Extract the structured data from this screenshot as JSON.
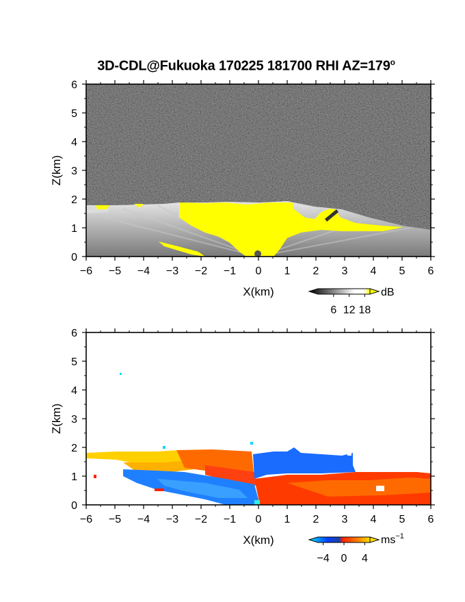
{
  "title": {
    "main": "3D-CDL@Fukuoka 170225 181700 RHI AZ=179",
    "degree_sup": "o"
  },
  "chart_data": [
    {
      "type": "heatmap",
      "panel": "top",
      "quantity": "backscatter intensity",
      "xlabel": "X(km)",
      "ylabel": "Z(km)",
      "xlim": [
        -6,
        6
      ],
      "ylim": [
        0,
        6
      ],
      "xticks": [
        "-6",
        "-5",
        "-4",
        "-3",
        "-2",
        "-1",
        "0",
        "1",
        "2",
        "3",
        "4",
        "5",
        "6"
      ],
      "yticks": [
        "0",
        "1",
        "2",
        "3",
        "4",
        "5",
        "6"
      ],
      "colorbar": {
        "unit": "dB",
        "ticks": [
          "6",
          "12",
          "18"
        ],
        "range": [
          0,
          20
        ],
        "colors": [
          "#000000",
          "#ffffff",
          "#ffff00"
        ]
      },
      "cloud_top_km": [
        {
          "x": -6.0,
          "z": 1.75
        },
        {
          "x": -5.0,
          "z": 1.75
        },
        {
          "x": -4.2,
          "z": 1.78
        },
        {
          "x": -3.0,
          "z": 1.8
        },
        {
          "x": -2.5,
          "z": 1.85
        },
        {
          "x": -1.5,
          "z": 1.88
        },
        {
          "x": 0.0,
          "z": 1.85
        },
        {
          "x": 1.0,
          "z": 1.9
        },
        {
          "x": 2.0,
          "z": 1.8
        },
        {
          "x": 3.0,
          "z": 1.75
        },
        {
          "x": 4.0,
          "z": 1.5
        },
        {
          "x": 5.0,
          "z": 1.2
        },
        {
          "x": 6.0,
          "z": 0.95
        }
      ],
      "strong_echo": "yellow (>= 18 dB) near ground above X=0 and along cloud top",
      "background": "noise (dark grey/black)"
    },
    {
      "type": "heatmap",
      "panel": "bottom",
      "quantity": "Doppler velocity",
      "xlabel": "X(km)",
      "ylabel": "Z(km)",
      "xlim": [
        -6,
        6
      ],
      "ylim": [
        0,
        6
      ],
      "xticks": [
        "-6",
        "-5",
        "-4",
        "-3",
        "-2",
        "-1",
        "0",
        "1",
        "2",
        "3",
        "4",
        "5",
        "6"
      ],
      "yticks": [
        "0",
        "1",
        "2",
        "3",
        "4",
        "5",
        "6"
      ],
      "colorbar": {
        "unit": "ms",
        "unit_exponent": "−1",
        "ticks": [
          "−4",
          "0",
          "4"
        ],
        "range": [
          -5,
          5
        ],
        "colors": [
          "#00e5ff",
          "#0050ff",
          "#ff2000",
          "#ffe000"
        ]
      },
      "regions": [
        {
          "x_range": [
            -6,
            -3
          ],
          "z_range": [
            1.5,
            1.85
          ],
          "sign": "positive",
          "approx_ms": 4
        },
        {
          "x_range": [
            -3,
            0
          ],
          "z_range": [
            1.2,
            1.8
          ],
          "sign": "positive",
          "approx_ms": 1.5
        },
        {
          "x_range": [
            -5,
            0
          ],
          "z_range": [
            0,
            1.2
          ],
          "sign": "negative",
          "approx_ms": -3
        },
        {
          "x_range": [
            0,
            3.2
          ],
          "z_range": [
            1.25,
            1.9
          ],
          "sign": "negative",
          "approx_ms": -2.5
        },
        {
          "x_range": [
            0,
            6
          ],
          "z_range": [
            0,
            1.25
          ],
          "sign": "positive",
          "approx_ms": 2
        }
      ]
    }
  ]
}
